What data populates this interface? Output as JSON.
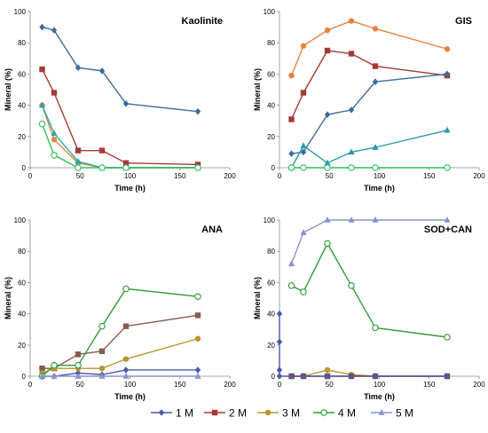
{
  "series_styles": [
    {
      "name": "1 M",
      "color": "#4a5aa8",
      "marker": "diamond"
    },
    {
      "name": "2 M",
      "color": "#a33b36",
      "marker": "square"
    },
    {
      "name": "3 M",
      "color": "#b8962e",
      "marker": "circle"
    },
    {
      "name": "4 M",
      "color": "#2e9a35",
      "marker": "circle-open"
    },
    {
      "name": "5 M",
      "color": "#8a93cf",
      "marker": "triangle"
    }
  ],
  "chart_data": [
    {
      "type": "line",
      "title": "Kaolinite",
      "xlabel": "Time (h)",
      "ylabel": "Mineral (%)",
      "xlim": [
        0,
        200
      ],
      "ylim": [
        0,
        100
      ],
      "xticks": [
        0,
        50,
        100,
        150,
        200
      ],
      "yticks": [
        0,
        20,
        40,
        60,
        80,
        100
      ],
      "grid": false,
      "series": [
        {
          "color": "#3b6c9c",
          "marker": "diamond",
          "points": [
            [
              12,
              90
            ],
            [
              24,
              88
            ],
            [
              48,
              64
            ],
            [
              72,
              62
            ],
            [
              96,
              41
            ],
            [
              168,
              36
            ]
          ]
        },
        {
          "color": "#a33b36",
          "marker": "square",
          "points": [
            [
              12,
              63
            ],
            [
              24,
              48
            ],
            [
              48,
              11
            ],
            [
              72,
              11
            ],
            [
              96,
              3
            ],
            [
              168,
              2
            ]
          ]
        },
        {
          "color": "#e08a3c",
          "marker": "circle",
          "points": [
            [
              12,
              40
            ],
            [
              24,
              18
            ],
            [
              48,
              3
            ],
            [
              72,
              0
            ],
            [
              96,
              0
            ],
            [
              168,
              0
            ]
          ]
        },
        {
          "color": "#2aa6a8",
          "marker": "triangle",
          "points": [
            [
              12,
              40
            ],
            [
              24,
              22
            ],
            [
              48,
              4
            ],
            [
              72,
              0
            ],
            [
              96,
              0
            ],
            [
              168,
              0
            ]
          ]
        },
        {
          "color": "#2fbf5c",
          "marker": "circle-open",
          "points": [
            [
              12,
              28
            ],
            [
              24,
              8
            ],
            [
              48,
              0
            ],
            [
              72,
              0
            ],
            [
              96,
              0
            ],
            [
              168,
              0
            ]
          ]
        }
      ]
    },
    {
      "type": "line",
      "title": "GIS",
      "xlabel": "Time (h)",
      "ylabel": "Mineral (%)",
      "xlim": [
        0,
        200
      ],
      "ylim": [
        0,
        100
      ],
      "xticks": [
        0,
        50,
        100,
        150,
        200
      ],
      "yticks": [
        0,
        20,
        40,
        60,
        80,
        100
      ],
      "grid": false,
      "series": [
        {
          "color": "#e8823e",
          "marker": "circle",
          "points": [
            [
              12,
              59
            ],
            [
              24,
              78
            ],
            [
              48,
              88
            ],
            [
              72,
              94
            ],
            [
              96,
              89
            ],
            [
              168,
              76
            ]
          ]
        },
        {
          "color": "#a33b36",
          "marker": "square",
          "points": [
            [
              12,
              31
            ],
            [
              24,
              48
            ],
            [
              48,
              75
            ],
            [
              72,
              73
            ],
            [
              96,
              65
            ],
            [
              168,
              59
            ]
          ]
        },
        {
          "color": "#3b6c9c",
          "marker": "diamond",
          "points": [
            [
              12,
              9
            ],
            [
              24,
              10
            ],
            [
              48,
              34
            ],
            [
              72,
              37
            ],
            [
              96,
              55
            ],
            [
              168,
              60
            ]
          ]
        },
        {
          "color": "#2a9aad",
          "marker": "triangle",
          "points": [
            [
              12,
              0
            ],
            [
              24,
              14
            ],
            [
              48,
              3
            ],
            [
              72,
              10
            ],
            [
              96,
              13
            ],
            [
              168,
              24
            ]
          ]
        },
        {
          "color": "#2fbf5c",
          "marker": "circle-open",
          "points": [
            [
              12,
              0
            ],
            [
              24,
              0
            ],
            [
              48,
              0
            ],
            [
              72,
              0
            ],
            [
              96,
              0
            ],
            [
              168,
              0
            ]
          ]
        }
      ]
    },
    {
      "type": "line",
      "title": "ANA",
      "xlabel": "Time (h)",
      "ylabel": "Mineral (%)",
      "xlim": [
        0,
        200
      ],
      "ylim": [
        0,
        100
      ],
      "xticks": [
        0,
        50,
        100,
        150,
        200
      ],
      "yticks": [
        0,
        20,
        40,
        60,
        80,
        100
      ],
      "grid": false,
      "series": [
        {
          "color": "#4a5aa8",
          "marker": "diamond",
          "points": [
            [
              12,
              0
            ],
            [
              24,
              0
            ],
            [
              48,
              2
            ],
            [
              72,
              1
            ],
            [
              96,
              4
            ],
            [
              168,
              4
            ]
          ]
        },
        {
          "color": "#8a5a4c",
          "marker": "square",
          "points": [
            [
              12,
              5
            ],
            [
              24,
              5
            ],
            [
              48,
              14
            ],
            [
              72,
              16
            ],
            [
              96,
              32
            ],
            [
              168,
              39
            ]
          ]
        },
        {
          "color": "#b8962e",
          "marker": "circle",
          "points": [
            [
              12,
              2
            ],
            [
              24,
              5
            ],
            [
              48,
              5
            ],
            [
              72,
              5
            ],
            [
              96,
              11
            ],
            [
              168,
              24
            ]
          ]
        },
        {
          "color": "#2e9a35",
          "marker": "circle-open",
          "points": [
            [
              12,
              0
            ],
            [
              24,
              7
            ],
            [
              48,
              7
            ],
            [
              72,
              32
            ],
            [
              96,
              56
            ],
            [
              168,
              51
            ]
          ]
        },
        {
          "color": "#8a93cf",
          "marker": "triangle",
          "points": [
            [
              12,
              0
            ],
            [
              24,
              0
            ],
            [
              48,
              0
            ],
            [
              72,
              0
            ],
            [
              96,
              0
            ],
            [
              168,
              0
            ]
          ]
        }
      ]
    },
    {
      "type": "line",
      "title": "SOD+CAN",
      "xlabel": "Time (h)",
      "ylabel": "Mineral (%)",
      "xlim": [
        0,
        200
      ],
      "ylim": [
        0,
        100
      ],
      "xticks": [
        0,
        50,
        100,
        150,
        200
      ],
      "yticks": [
        0,
        20,
        40,
        60,
        80,
        100
      ],
      "grid": false,
      "series": [
        {
          "color": "#8a93cf",
          "marker": "triangle",
          "points": [
            [
              12,
              72
            ],
            [
              24,
              92
            ],
            [
              48,
              100
            ],
            [
              72,
              100
            ],
            [
              96,
              100
            ],
            [
              168,
              100
            ]
          ]
        },
        {
          "color": "#2e9a35",
          "marker": "circle-open",
          "points": [
            [
              12,
              58
            ],
            [
              24,
              54
            ],
            [
              48,
              85
            ],
            [
              72,
              58
            ],
            [
              96,
              31
            ],
            [
              168,
              25
            ]
          ]
        },
        {
          "color": "#b8962e",
          "marker": "circle",
          "points": [
            [
              12,
              0
            ],
            [
              24,
              0
            ],
            [
              48,
              4
            ],
            [
              72,
              1
            ],
            [
              96,
              0
            ],
            [
              168,
              0
            ]
          ]
        },
        {
          "color": "#a33b36",
          "marker": "square",
          "points": [
            [
              12,
              0
            ],
            [
              24,
              0
            ],
            [
              48,
              0
            ],
            [
              72,
              0
            ],
            [
              96,
              0
            ],
            [
              168,
              0
            ]
          ]
        },
        {
          "color": "#4a5aa8",
          "marker": "diamond",
          "points": [
            [
              0,
              40
            ],
            [
              0,
              22
            ],
            [
              0,
              4
            ],
            [
              0,
              0
            ],
            [
              12,
              0
            ],
            [
              24,
              0
            ],
            [
              48,
              0
            ],
            [
              72,
              0
            ],
            [
              96,
              0
            ],
            [
              168,
              0
            ]
          ]
        }
      ]
    }
  ],
  "legend": {
    "position": "bottom",
    "entries": [
      "1 M",
      "2 M",
      "3 M",
      "4 M",
      "5 M"
    ]
  }
}
